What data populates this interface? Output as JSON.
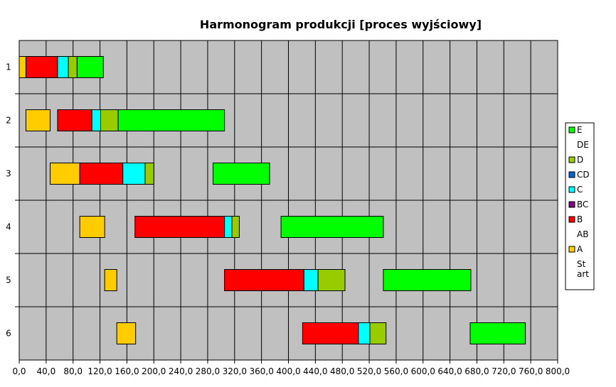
{
  "chart_data": {
    "type": "bar",
    "orientation": "horizontal-stacked-gantt",
    "title": "Harmonogram produkcji [proces wyjściowy]",
    "xlabel": "",
    "ylabel": "",
    "xlim": [
      0,
      800
    ],
    "x_tick_labels": [
      "0,0",
      "40,0",
      "80,0",
      "120,0",
      "160,0",
      "200,0",
      "240,0",
      "280,0",
      "320,0",
      "360,0",
      "400,0",
      "440,0",
      "480,0",
      "520,0",
      "560,0",
      "600,0",
      "640,0",
      "680,0",
      "720,0",
      "760,0",
      "800,0"
    ],
    "x_ticks": [
      0,
      40,
      80,
      120,
      160,
      200,
      240,
      280,
      320,
      360,
      400,
      440,
      480,
      520,
      560,
      600,
      640,
      680,
      720,
      760,
      800
    ],
    "categories": [
      "1",
      "2",
      "3",
      "4",
      "5",
      "6"
    ],
    "grid": true,
    "legend_position": "right",
    "colors": {
      "Start": "none",
      "A": "#ffcc00",
      "AB": "none",
      "B": "#ff0000",
      "BC": "#800080",
      "C": "#00ffff",
      "CD": "#0066cc",
      "D": "#99cc00",
      "DE": "none",
      "E": "#00ff00",
      "plot_background": "#c0c0c0"
    },
    "legend": [
      "E",
      "DE",
      "D",
      "CD",
      "C",
      "BC",
      "B",
      "AB",
      "A",
      "Start"
    ],
    "series": [
      {
        "name": "Start",
        "values": [
          0,
          10,
          46,
          90,
          127,
          145
        ]
      },
      {
        "name": "A",
        "values": [
          10,
          36,
          44,
          37,
          18,
          28
        ]
      },
      {
        "name": "AB",
        "values": [
          0,
          11,
          0,
          45,
          160,
          248
        ]
      },
      {
        "name": "B",
        "values": [
          47,
          51,
          64,
          133,
          118,
          83
        ]
      },
      {
        "name": "BC",
        "values": [
          0,
          0,
          0,
          0,
          0,
          0
        ]
      },
      {
        "name": "C",
        "values": [
          16,
          13,
          33,
          11,
          21,
          17
        ]
      },
      {
        "name": "CD",
        "values": [
          0,
          0,
          0,
          0,
          0,
          0
        ]
      },
      {
        "name": "D",
        "values": [
          13,
          26,
          13,
          11,
          40,
          24
        ]
      },
      {
        "name": "DE",
        "values": [
          0,
          0,
          88,
          62,
          57,
          125
        ]
      },
      {
        "name": "E",
        "values": [
          39,
          158,
          84,
          152,
          130,
          82
        ]
      }
    ]
  }
}
